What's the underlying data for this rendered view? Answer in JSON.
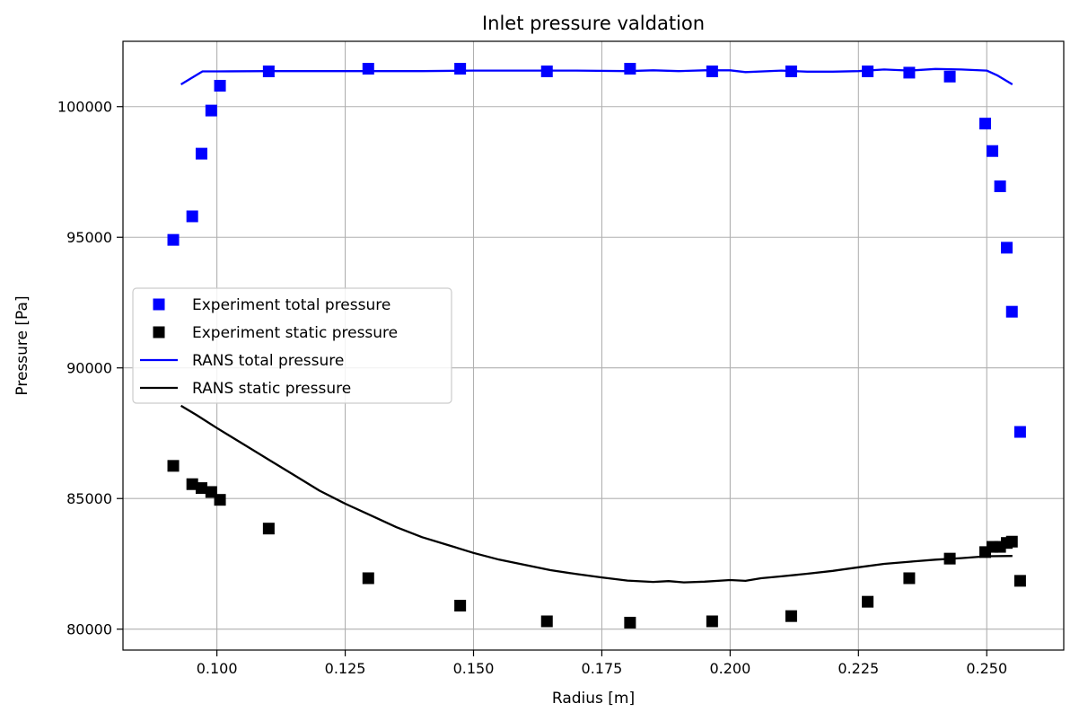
{
  "chart_data": {
    "type": "scatter",
    "title": "Inlet pressure valdation",
    "xlabel": "Radius [m]",
    "ylabel": "Pressure [Pa]",
    "xlim": [
      0.0817,
      0.265
    ],
    "ylim": [
      79200,
      102500
    ],
    "xticks": [
      0.1,
      0.125,
      0.15,
      0.175,
      0.2,
      0.225,
      0.25
    ],
    "xtick_labels": [
      "0.100",
      "0.125",
      "0.150",
      "0.175",
      "0.200",
      "0.225",
      "0.250"
    ],
    "yticks": [
      80000,
      85000,
      90000,
      95000,
      100000
    ],
    "ytick_labels": [
      "80000",
      "85000",
      "90000",
      "95000",
      "100000"
    ],
    "grid": true,
    "legend_position": "center-left",
    "series": [
      {
        "name": "Experiment total pressure",
        "kind": "marker",
        "color": "#0000ff",
        "x": [
          0.0915,
          0.0952,
          0.097,
          0.0989,
          0.1006,
          0.1101,
          0.1295,
          0.1474,
          0.1643,
          0.1805,
          0.1965,
          0.2119,
          0.2268,
          0.2349,
          0.2428,
          0.2497,
          0.2511,
          0.2526,
          0.2539,
          0.2549,
          0.2565
        ],
        "y": [
          94900,
          95800,
          98200,
          99850,
          100800,
          101350,
          101450,
          101450,
          101350,
          101450,
          101350,
          101350,
          101350,
          101300,
          101150,
          99350,
          98300,
          96950,
          94600,
          92150,
          87550
        ]
      },
      {
        "name": "Experiment static pressure",
        "kind": "marker",
        "color": "#000000",
        "x": [
          0.0915,
          0.0952,
          0.097,
          0.0989,
          0.1006,
          0.1101,
          0.1295,
          0.1474,
          0.1643,
          0.1805,
          0.1965,
          0.2119,
          0.2268,
          0.2349,
          0.2428,
          0.2497,
          0.2511,
          0.2526,
          0.2539,
          0.2549,
          0.2565
        ],
        "y": [
          86250,
          85550,
          85400,
          85250,
          84950,
          83850,
          81950,
          80900,
          80300,
          80250,
          80300,
          80500,
          81050,
          81950,
          82700,
          82950,
          83150,
          83150,
          83300,
          83350,
          81850
        ]
      },
      {
        "name": "RANS total pressure",
        "kind": "line",
        "color": "#0000ff",
        "x": [
          0.093,
          0.0972,
          0.1,
          0.11,
          0.12,
          0.13,
          0.14,
          0.15,
          0.16,
          0.17,
          0.18,
          0.185,
          0.19,
          0.195,
          0.2,
          0.203,
          0.21,
          0.215,
          0.22,
          0.225,
          0.23,
          0.235,
          0.24,
          0.245,
          0.25,
          0.252,
          0.255
        ],
        "y": [
          100850,
          101350,
          101350,
          101360,
          101360,
          101360,
          101360,
          101380,
          101380,
          101380,
          101360,
          101390,
          101360,
          101390,
          101390,
          101320,
          101380,
          101340,
          101340,
          101360,
          101420,
          101380,
          101440,
          101420,
          101380,
          101200,
          100850
        ]
      },
      {
        "name": "RANS static pressure",
        "kind": "line",
        "color": "#000000",
        "x": [
          0.093,
          0.096,
          0.1,
          0.105,
          0.11,
          0.115,
          0.12,
          0.125,
          0.13,
          0.135,
          0.14,
          0.145,
          0.15,
          0.155,
          0.16,
          0.165,
          0.17,
          0.175,
          0.18,
          0.185,
          0.188,
          0.191,
          0.195,
          0.2,
          0.203,
          0.206,
          0.21,
          0.215,
          0.22,
          0.225,
          0.23,
          0.235,
          0.24,
          0.245,
          0.25,
          0.255
        ],
        "y": [
          88550,
          88200,
          87700,
          87100,
          86500,
          85900,
          85300,
          84800,
          84350,
          83900,
          83520,
          83220,
          82920,
          82660,
          82460,
          82260,
          82110,
          81980,
          81860,
          81810,
          81840,
          81790,
          81820,
          81880,
          81850,
          81950,
          82020,
          82120,
          82230,
          82370,
          82500,
          82580,
          82660,
          82720,
          82790,
          82800
        ]
      }
    ]
  }
}
